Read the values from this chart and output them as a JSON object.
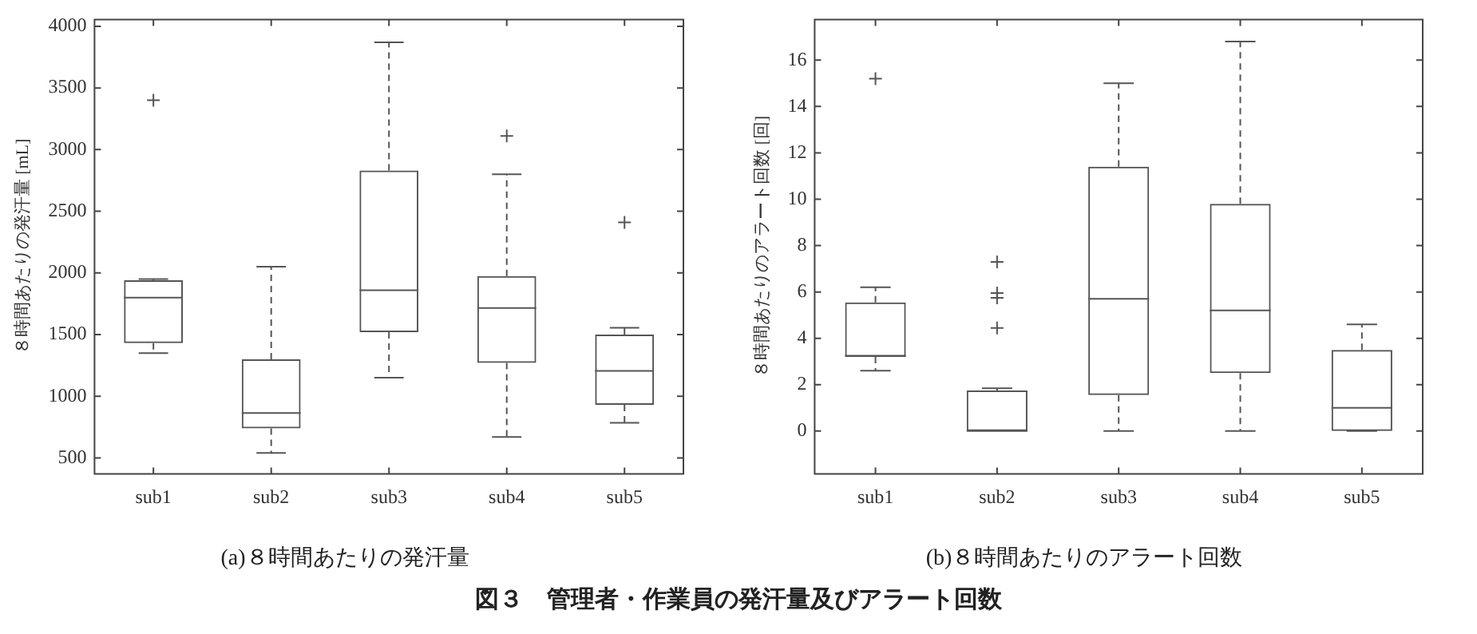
{
  "chart_data": [
    {
      "type": "box",
      "title": "(a)８時間あたりの発汗量",
      "ylabel": "８時間あたりの発汗量 [mL]",
      "categories": [
        "sub1",
        "sub2",
        "sub3",
        "sub4",
        "sub5"
      ],
      "color": "#555555",
      "marker": "cross",
      "grid": false,
      "legend": false,
      "boxes": [
        {
          "low": 1350,
          "q1": 1430,
          "median": 1800,
          "q3": 1940,
          "high": 1950,
          "outliers": [
            3400
          ]
        },
        {
          "low": 540,
          "q1": 740,
          "median": 865,
          "q3": 1300,
          "high": 2050
        },
        {
          "low": 1150,
          "q1": 1520,
          "median": 1860,
          "q3": 2830,
          "high": 3870
        },
        {
          "low": 670,
          "q1": 1270,
          "median": 1715,
          "q3": 1975,
          "high": 2800,
          "outliers": [
            3110
          ]
        },
        {
          "low": 785,
          "q1": 930,
          "median": 1205,
          "q3": 1500,
          "high": 1555,
          "outliers": [
            2410
          ]
        }
      ],
      "ylim": [
        370,
        4055
      ],
      "yticks": [
        500,
        1000,
        1500,
        2000,
        2500,
        3000,
        3500,
        4000
      ],
      "annotations": [
        "図３　管理者・作業員の発汗量及びアラート回数"
      ]
    },
    {
      "type": "box",
      "title": "(b)８時間あたりのアラート回数",
      "ylabel": "８時間あたりのアラート回数 [回]",
      "categories": [
        "sub1",
        "sub2",
        "sub3",
        "sub4",
        "sub5"
      ],
      "color": "#555555",
      "marker": "cross",
      "grid": false,
      "legend": false,
      "boxes": [
        {
          "low": 2.6,
          "q1": 3.2,
          "median": 3.25,
          "q3": 5.55,
          "high": 6.2,
          "outliers": [
            15.2
          ]
        },
        {
          "low": 0,
          "q1": 0,
          "median": 0,
          "q3": 1.75,
          "high": 1.85,
          "outliers": [
            7.3,
            5.95,
            5.75,
            4.45
          ]
        },
        {
          "low": 0,
          "q1": 1.55,
          "median": 5.7,
          "q3": 11.4,
          "high": 15.0
        },
        {
          "low": 0,
          "q1": 2.5,
          "median": 5.2,
          "q3": 9.8,
          "high": 16.8
        },
        {
          "low": 0,
          "q1": 0,
          "median": 1.0,
          "q3": 3.5,
          "high": 4.6
        }
      ],
      "ylim": [
        -1.85,
        17.75
      ],
      "yticks": [
        0,
        2,
        4,
        6,
        8,
        10,
        12,
        14,
        16
      ]
    }
  ]
}
